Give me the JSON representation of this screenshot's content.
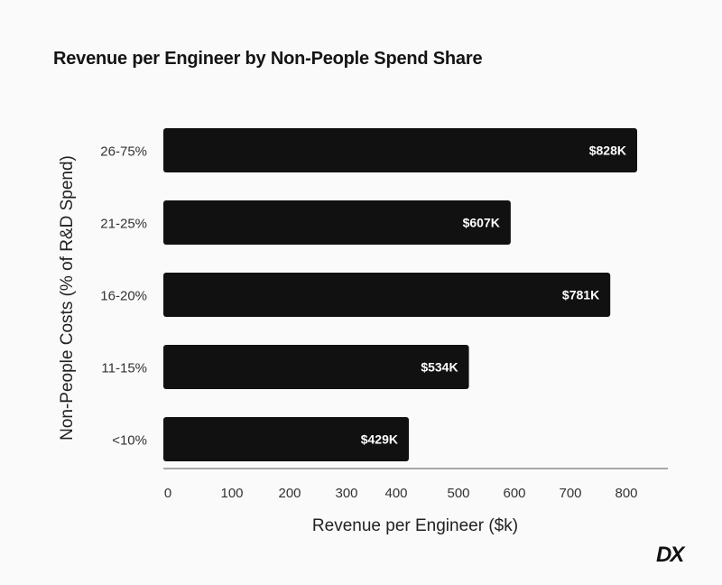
{
  "chart_data": {
    "type": "bar",
    "orientation": "horizontal",
    "title": "Revenue per Engineer by Non-People Spend Share",
    "xlabel": "Revenue per Engineer ($k)",
    "ylabel": "Non-People Costs (% of R&D Spend)",
    "categories": [
      "26-75%",
      "21-25%",
      "16-20%",
      "11-15%",
      "<10%"
    ],
    "values": [
      828,
      607,
      781,
      534,
      429
    ],
    "data_labels": [
      "$828K",
      "$607K",
      "$781K",
      "$534K",
      "$429K"
    ],
    "xticks": [
      "0",
      "100",
      "200",
      "300",
      "400",
      "500",
      "600",
      "700",
      "800"
    ],
    "xlim": [
      0,
      880
    ],
    "grid": false,
    "bar_color": "#111111",
    "label_color": "#ffffff"
  },
  "logo": "DX"
}
